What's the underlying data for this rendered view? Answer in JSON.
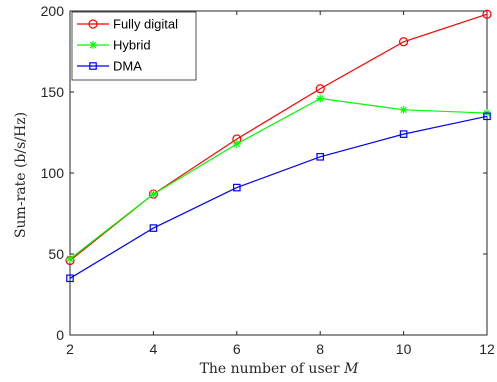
{
  "chart_data": {
    "type": "line",
    "title": "",
    "xlabel": "The number of user ",
    "xlabel_var": "M",
    "ylabel": "Sum-rate (b/s/Hz)",
    "x": [
      2,
      4,
      6,
      8,
      10,
      12
    ],
    "xlim": [
      2,
      12
    ],
    "ylim": [
      0,
      200
    ],
    "xticks": [
      "2",
      "4",
      "6",
      "8",
      "10",
      "12"
    ],
    "yticks": [
      "0",
      "50",
      "100",
      "150",
      "200"
    ],
    "grid": false,
    "legend_position": "top-left",
    "series": [
      {
        "name": "Fully digital",
        "color": "#ff0000",
        "marker": "circle",
        "values": [
          46,
          87,
          121,
          152,
          181,
          198
        ]
      },
      {
        "name": "Hybrid",
        "color": "#00ff00",
        "marker": "asterisk",
        "values": [
          47,
          87,
          118,
          146,
          139,
          137
        ]
      },
      {
        "name": "DMA",
        "color": "#0000ff",
        "marker": "square",
        "values": [
          35,
          66,
          91,
          110,
          124,
          135
        ]
      }
    ]
  }
}
